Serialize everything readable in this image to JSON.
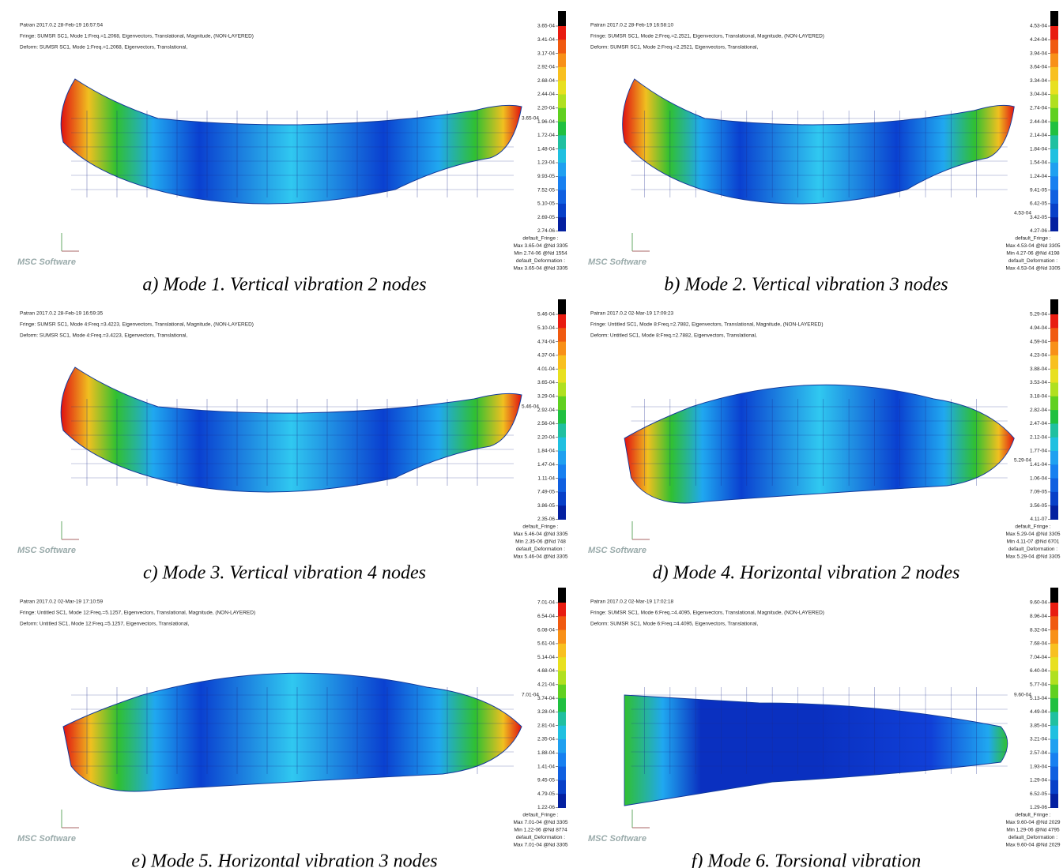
{
  "logo": "MSC Software",
  "panels": [
    {
      "header": [
        "Patran 2017.0.2 28-Feb-19 16:57:54",
        "Fringe: SUMSR SC1, Mode 1:Freq.=1.2068, Eigenvectors, Translational, Magnitude, (NON-LAYERED)",
        "Deform: SUMSR SC1, Mode 1:Freq.=1.2068, Eigenvectors, Translational,"
      ],
      "colorbar": [
        "3.65-04",
        "3.41-04",
        "3.17-04",
        "2.92-04",
        "2.68-04",
        "2.44-04",
        "2.20-04",
        "1.96-04",
        "1.72-04",
        "1.48-04",
        "1.23-04",
        "9.93-05",
        "7.52-05",
        "5.10-05",
        "2.69-05",
        "2.74-06"
      ],
      "model_max": "3.65-04",
      "legend": [
        "default_Fringe :",
        "Max 3.65-04 @Nd 3305",
        "Min 2.74-06 @Nd 1554",
        "default_Deformation :",
        "Max 3.65-04 @Nd 3305"
      ],
      "caption": "a) Mode 1. Vertical vibration 2 nodes"
    },
    {
      "header": [
        "Patran 2017.0.2 28-Feb-19 16:58:10",
        "Fringe: SUMSR SC1, Mode 2:Freq.=2.2521, Eigenvectors, Translational, Magnitude, (NON-LAYERED)",
        "Deform: SUMSR SC1, Mode 2:Freq.=2.2521, Eigenvectors, Translational,"
      ],
      "colorbar": [
        "4.53-04",
        "4.24-04",
        "3.94-04",
        "3.64-04",
        "3.34-04",
        "3.04-04",
        "2.74-04",
        "2.44-04",
        "2.14-04",
        "1.84-04",
        "1.54-04",
        "1.24-04",
        "9.41-05",
        "6.42-05",
        "3.42-05",
        "4.27-06"
      ],
      "model_max": "4.53-04",
      "legend": [
        "default_Fringe :",
        "Max 4.53-04 @Nd 3305",
        "Min 4.27-06 @Nd 4198",
        "default_Deformation :",
        "Max 4.53-04 @Nd 3305"
      ],
      "caption": "b) Mode 2. Vertical vibration 3 nodes"
    },
    {
      "header": [
        "Patran 2017.0.2 28-Feb-19 16:59:35",
        "Fringe: SUMSR SC1, Mode 4:Freq.=3.4223, Eigenvectors, Translational, Magnitude, (NON-LAYERED)",
        "Deform: SUMSR SC1, Mode 4:Freq.=3.4223, Eigenvectors, Translational,"
      ],
      "colorbar": [
        "5.46-04",
        "5.10-04",
        "4.74-04",
        "4.37-04",
        "4.01-04",
        "3.65-04",
        "3.29-04",
        "2.92-04",
        "2.56-04",
        "2.20-04",
        "1.84-04",
        "1.47-04",
        "1.11-04",
        "7.49-05",
        "3.86-05",
        "2.35-06"
      ],
      "model_max": "5.46-04",
      "legend": [
        "default_Fringe :",
        "Max 5.46-04 @Nd 3305",
        "Min 2.35-06 @Nd 748",
        "default_Deformation :",
        "Max 5.46-04 @Nd 3305"
      ],
      "caption": "c) Mode 3. Vertical vibration 4 nodes"
    },
    {
      "header": [
        "Patran 2017.0.2 02-Mar-19 17:09:23",
        "Fringe: Untitled SC1, Mode 8:Freq.=2.7882, Eigenvectors, Translational, Magnitude, (NON-LAYERED)",
        "Deform: Untitled SC1, Mode 8:Freq.=2.7882, Eigenvectors, Translational,"
      ],
      "colorbar": [
        "5.29-04",
        "4.94-04",
        "4.59-04",
        "4.23-04",
        "3.88-04",
        "3.53-04",
        "3.18-04",
        "2.82-04",
        "2.47-04",
        "2.12-04",
        "1.77-04",
        "1.41-04",
        "1.06-04",
        "7.09-05",
        "3.56-05",
        "4.11-07"
      ],
      "model_max": "5.29-04",
      "legend": [
        "default_Fringe :",
        "Max 5.29-04 @Nd 3305",
        "Min 4.11-07 @Nd 6701",
        "default_Deformation :",
        "Max 5.29-04 @Nd 3305"
      ],
      "caption": "d) Mode 4. Horizontal vibration 2 nodes"
    },
    {
      "header": [
        "Patran 2017.0.2 02-Mar-19 17:10:59",
        "Fringe: Untitled SC1, Mode 12:Freq.=5.1257, Eigenvectors, Translational, Magnitude, (NON-LAYERED)",
        "Deform: Untitled SC1, Mode 12:Freq.=5.1257, Eigenvectors, Translational,"
      ],
      "colorbar": [
        "7.01-04",
        "6.54-04",
        "6.08-04",
        "5.61-04",
        "5.14-04",
        "4.68-04",
        "4.21-04",
        "3.74-04",
        "3.28-04",
        "2.81-04",
        "2.35-04",
        "1.88-04",
        "1.41-04",
        "9.45-05",
        "4.79-05",
        "1.22-06"
      ],
      "model_max": "7.01-04",
      "legend": [
        "default_Fringe :",
        "Max 7.01-04 @Nd 3305",
        "Min 1.22-06 @Nd 8774",
        "default_Deformation :",
        "Max 7.01-04 @Nd 3305"
      ],
      "caption": "e) Mode 5. Horizontal vibration 3 nodes"
    },
    {
      "header": [
        "Patran 2017.0.2 02-Mar-19 17:02:18",
        "Fringe: SUMSR SC1, Mode 6:Freq.=4.4095, Eigenvectors, Translational, Magnitude, (NON-LAYERED)",
        "Deform: SUMSR SC1, Mode 6:Freq.=4.4095, Eigenvectors, Translational,"
      ],
      "colorbar": [
        "9.60-04",
        "8.96-04",
        "8.32-04",
        "7.68-04",
        "7.04-04",
        "6.40-04",
        "5.77-04",
        "5.13-04",
        "4.49-04",
        "3.85-04",
        "3.21-04",
        "2.57-04",
        "1.93-04",
        "1.29-04",
        "6.52-05",
        "1.29-06"
      ],
      "model_max": "9.60-04",
      "legend": [
        "default_Fringe :",
        "Max 9.60-04 @Nd 2029",
        "Min 1.29-06 @Nd 4795",
        "default_Deformation :",
        "Max 9.60-04 @Nd 2029"
      ],
      "caption": "f) Mode 6. Torsional vibration"
    }
  ]
}
